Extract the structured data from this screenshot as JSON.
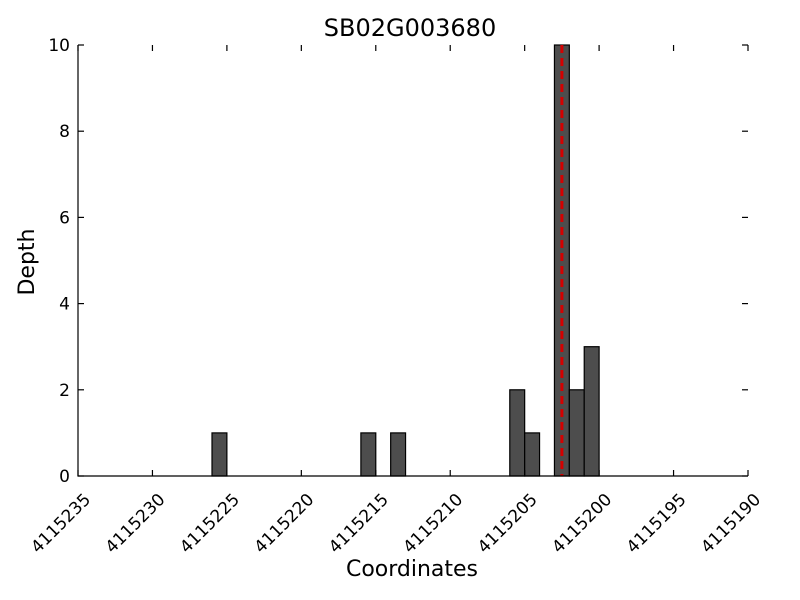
{
  "chart_data": {
    "type": "bar",
    "title": "SB02G003680",
    "xlabel": "Coordinates",
    "ylabel": "Depth",
    "xlim": [
      4115235,
      4115190
    ],
    "ylim": [
      0,
      10
    ],
    "x_ticks": [
      4115235,
      4115230,
      4115225,
      4115220,
      4115215,
      4115210,
      4115205,
      4115200,
      4115195,
      4115190
    ],
    "y_ticks": [
      0,
      2,
      4,
      6,
      8,
      10
    ],
    "bar_color": "#4d4d4d",
    "marker_color": "#d40000",
    "marker_x": 4115202.5,
    "bars": [
      {
        "x": 4115226,
        "value": 1
      },
      {
        "x": 4115216,
        "value": 1
      },
      {
        "x": 4115214,
        "value": 1
      },
      {
        "x": 4115206,
        "value": 2
      },
      {
        "x": 4115205,
        "value": 1
      },
      {
        "x": 4115203,
        "value": 10
      },
      {
        "x": 4115202,
        "value": 2
      },
      {
        "x": 4115201,
        "value": 3
      }
    ],
    "grid": false,
    "legend": "none"
  }
}
